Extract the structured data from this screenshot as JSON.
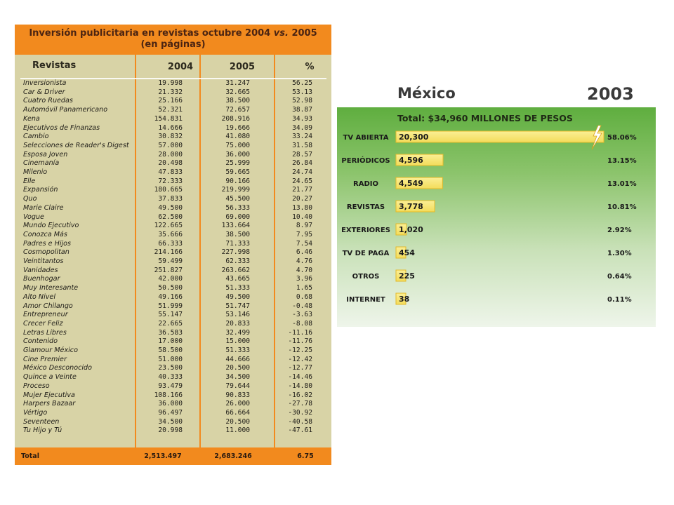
{
  "table": {
    "title_line1_a": "Inversión publicitaria en revistas octubre 2004 ",
    "title_line1_vs": "vs.",
    "title_line1_b": " 2005",
    "title_line2": "(en páginas)",
    "header": {
      "name": "Revistas",
      "y2004": "2004",
      "y2005": "2005",
      "pct": "%"
    },
    "rows": [
      [
        "Inversionista",
        "19.998",
        "31.247",
        "56.25"
      ],
      [
        "Car & Driver",
        "21.332",
        "32.665",
        "53.13"
      ],
      [
        "Cuatro Ruedas",
        "25.166",
        "38.500",
        "52.98"
      ],
      [
        "Automóvil Panamericano",
        "52.321",
        "72.657",
        "38.87"
      ],
      [
        "Kena",
        "154.831",
        "208.916",
        "34.93"
      ],
      [
        "Ejecutivos de Finanzas",
        "14.666",
        "19.666",
        "34.09"
      ],
      [
        "Cambio",
        "30.832",
        "41.080",
        "33.24"
      ],
      [
        "Selecciones de Reader's Digest",
        "57.000",
        "75.000",
        "31.58"
      ],
      [
        "Esposa Joven",
        "28.000",
        "36.000",
        "28.57"
      ],
      [
        "Cinemanía",
        "20.498",
        "25.999",
        "26.84"
      ],
      [
        "Milenio",
        "47.833",
        "59.665",
        "24.74"
      ],
      [
        "Elle",
        "72.333",
        "90.166",
        "24.65"
      ],
      [
        "Expansión",
        "180.665",
        "219.999",
        "21.77"
      ],
      [
        "Quo",
        "37.833",
        "45.500",
        "20.27"
      ],
      [
        "Marie Claire",
        "49.500",
        "56.333",
        "13.80"
      ],
      [
        "Vogue",
        "62.500",
        "69.000",
        "10.40"
      ],
      [
        "Mundo Ejecutivo",
        "122.665",
        "133.664",
        "8.97"
      ],
      [
        "Conozca Más",
        "35.666",
        "38.500",
        "7.95"
      ],
      [
        "Padres e Hijos",
        "66.333",
        "71.333",
        "7.54"
      ],
      [
        "Cosmopolitan",
        "214.166",
        "227.998",
        "6.46"
      ],
      [
        "Veintitantos",
        "59.499",
        "62.333",
        "4.76"
      ],
      [
        "Vanidades",
        "251.827",
        "263.662",
        "4.70"
      ],
      [
        "Buenhogar",
        "42.000",
        "43.665",
        "3.96"
      ],
      [
        "Muy Interesante",
        "50.500",
        "51.333",
        "1.65"
      ],
      [
        "Alto Nivel",
        "49.166",
        "49.500",
        "0.68"
      ],
      [
        "Amor Chilango",
        "51.999",
        "51.747",
        "-0.48"
      ],
      [
        "Entrepreneur",
        "55.147",
        "53.146",
        "-3.63"
      ],
      [
        "Crecer Feliz",
        "22.665",
        "20.833",
        "-8.08"
      ],
      [
        "Letras Libres",
        "36.583",
        "32.499",
        "-11.16"
      ],
      [
        "Contenido",
        "17.000",
        "15.000",
        "-11.76"
      ],
      [
        "Glamour México",
        "58.500",
        "51.333",
        "-12.25"
      ],
      [
        "Cine Premier",
        "51.000",
        "44.666",
        "-12.42"
      ],
      [
        "México Desconocido",
        "23.500",
        "20.500",
        "-12.77"
      ],
      [
        "Quince a Veinte",
        "40.333",
        "34.500",
        "-14.46"
      ],
      [
        "Proceso",
        "93.479",
        "79.644",
        "-14.80"
      ],
      [
        "Mujer Ejecutiva",
        "108.166",
        "90.833",
        "-16.02"
      ],
      [
        "Harpers Bazaar",
        "36.000",
        "26.000",
        "-27.78"
      ],
      [
        "Vértigo",
        "96.497",
        "66.664",
        "-30.92"
      ],
      [
        "Seventeen",
        "34.500",
        "20.500",
        "-40.58"
      ],
      [
        "Tu Hijo y Tú",
        "20.998",
        "11.000",
        "-47.61"
      ]
    ],
    "total": {
      "label": "Total",
      "y2004": "2,513.497",
      "y2005": "2,683.246",
      "pct": "6.75"
    },
    "colors": {
      "accent": "#f28a1e",
      "background": "#d8d3a6"
    }
  },
  "chart_data": {
    "type": "bar",
    "title": "México",
    "year": "2003",
    "subtitle": "Total: $34,960 MILLONES DE PESOS",
    "categories": [
      "TV ABIERTA",
      "PERIÓDICOS",
      "RADIO",
      "REVISTAS",
      "EXTERIORES",
      "TV DE PAGA",
      "OTROS",
      "INTERNET"
    ],
    "values": [
      20300,
      4596,
      4549,
      3778,
      1020,
      454,
      225,
      38
    ],
    "value_labels": [
      "20,300",
      "4,596",
      "4,549",
      "3,778",
      "1,020",
      "454",
      "225",
      "38"
    ],
    "percent_labels": [
      "58.06%",
      "13.15%",
      "13.01%",
      "10.81%",
      "2.92%",
      "1.30%",
      "0.64%",
      "0.11%"
    ],
    "orientation": "horizontal",
    "grid": false,
    "legend": "none",
    "colors": {
      "bar_fill": "#f3dc5a",
      "bar_edge": "#e3b92a",
      "panel_top": "#5fae3f",
      "panel_bottom": "#eef5ea"
    }
  }
}
